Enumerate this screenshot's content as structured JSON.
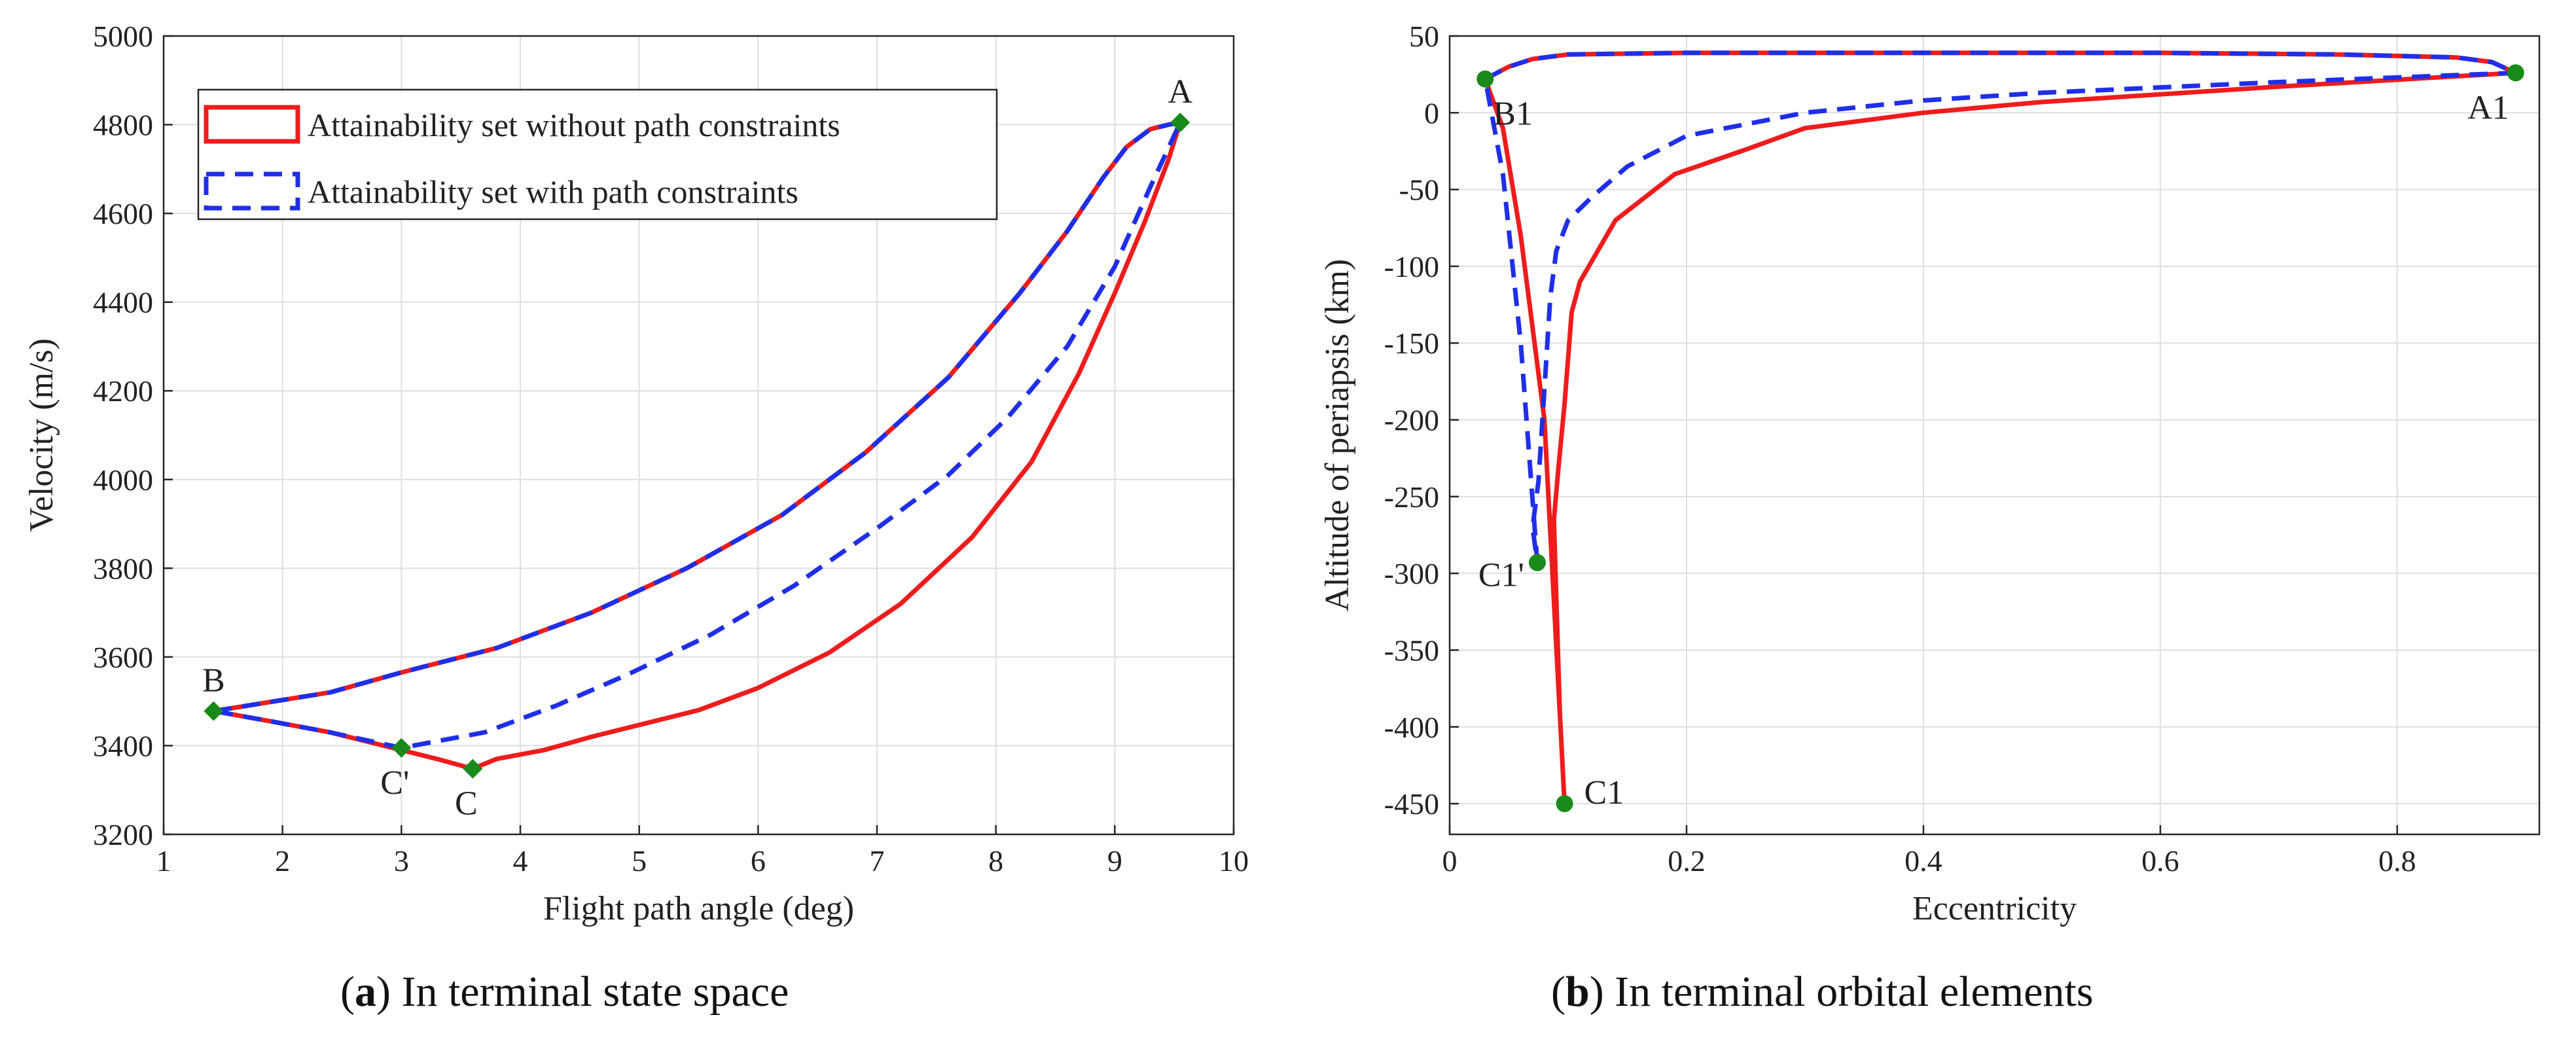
{
  "captions": {
    "a": {
      "letter": "a",
      "open": "(",
      "rest": ") In terminal state space"
    },
    "b": {
      "letter": "b",
      "open": "(",
      "rest": ") In terminal orbital elements"
    }
  },
  "colors": {
    "red": "#ee1c1c",
    "blue": "#1f2fe8",
    "marker": "#198a19",
    "grid": "#dedede"
  },
  "chart_data": [
    {
      "id": "a",
      "type": "line",
      "title": "",
      "xlabel": "Flight path angle (deg)",
      "ylabel": "Velocity (m/s)",
      "xlim": [
        1,
        10
      ],
      "ylim": [
        3200,
        5000
      ],
      "xticks": [
        1,
        2,
        3,
        4,
        5,
        6,
        7,
        8,
        9,
        10
      ],
      "yticks": [
        3200,
        3400,
        3600,
        3800,
        4000,
        4200,
        4400,
        4600,
        4800,
        5000
      ],
      "grid": true,
      "legend": {
        "position": "top-left",
        "entries": [
          "Attainability set without path constraints",
          "Attainability set with path constraints"
        ]
      },
      "series": [
        {
          "name": "Attainability set without path constraints",
          "color": "red",
          "style": "solid",
          "x": [
            1.42,
            2.4,
            3.0,
            3.8,
            4.6,
            5.4,
            6.2,
            6.9,
            7.6,
            8.2,
            8.6,
            8.9,
            9.1,
            9.3,
            9.45,
            9.55,
            9.45,
            9.25,
            9.0,
            8.7,
            8.3,
            7.8,
            7.2,
            6.6,
            6.0,
            5.5,
            4.6,
            4.2,
            3.8,
            3.6,
            3.3,
            3.0,
            2.4,
            1.9,
            1.42
          ],
          "y": [
            3478,
            3520,
            3565,
            3620,
            3700,
            3800,
            3920,
            4060,
            4230,
            4420,
            4560,
            4680,
            4750,
            4790,
            4800,
            4805,
            4720,
            4580,
            4420,
            4240,
            4040,
            3870,
            3720,
            3610,
            3530,
            3480,
            3420,
            3390,
            3370,
            3348,
            3370,
            3390,
            3430,
            3455,
            3478
          ]
        },
        {
          "name": "Attainability set with path constraints",
          "color": "blue",
          "style": "dashed",
          "x": [
            1.42,
            2.4,
            3.0,
            3.8,
            4.6,
            5.4,
            6.2,
            6.9,
            7.6,
            8.2,
            8.6,
            8.9,
            9.1,
            9.3,
            9.45,
            9.55,
            9.3,
            9.0,
            8.6,
            8.1,
            7.6,
            7.0,
            6.3,
            5.6,
            4.9,
            4.3,
            3.7,
            3.0,
            2.4,
            1.9,
            1.42
          ],
          "y": [
            3478,
            3520,
            3565,
            3620,
            3700,
            3800,
            3920,
            4060,
            4230,
            4420,
            4560,
            4680,
            4750,
            4790,
            4800,
            4805,
            4660,
            4480,
            4300,
            4140,
            4010,
            3890,
            3760,
            3650,
            3560,
            3490,
            3430,
            3395,
            3430,
            3455,
            3478
          ]
        }
      ],
      "points": [
        {
          "label": "A",
          "x": 9.55,
          "y": 4805,
          "anchor": "above"
        },
        {
          "label": "B",
          "x": 1.42,
          "y": 3478,
          "anchor": "above"
        },
        {
          "label": "C'",
          "x": 3.0,
          "y": 3395,
          "anchor": "below"
        },
        {
          "label": "C",
          "x": 3.6,
          "y": 3348,
          "anchor": "below"
        }
      ]
    },
    {
      "id": "b",
      "type": "line",
      "title": "",
      "xlabel": "Eccentricity",
      "ylabel": "Altitude of periapsis (km)",
      "xlim": [
        0,
        0.92
      ],
      "ylim": [
        -470,
        50
      ],
      "xticks": [
        0,
        0.2,
        0.4,
        0.6,
        0.8
      ],
      "xtick_labels": [
        "0",
        "0.2",
        "0.4",
        "0.6",
        "0.8"
      ],
      "yticks": [
        -450,
        -400,
        -350,
        -300,
        -250,
        -200,
        -150,
        -100,
        -50,
        0,
        50
      ],
      "grid": true,
      "series": [
        {
          "name": "Attainability set without path constraints",
          "color": "red",
          "style": "solid",
          "x": [
            0.03,
            0.05,
            0.07,
            0.1,
            0.2,
            0.4,
            0.6,
            0.75,
            0.85,
            0.88,
            0.9,
            0.7,
            0.5,
            0.4,
            0.3,
            0.25,
            0.19,
            0.14,
            0.11,
            0.103,
            0.097,
            0.092,
            0.088,
            0.093,
            0.097,
            0.08,
            0.06,
            0.045,
            0.03
          ],
          "y": [
            22,
            30,
            35,
            38,
            39,
            39,
            39,
            38,
            36,
            33,
            26,
            17,
            7,
            0,
            -10,
            -24,
            -40,
            -70,
            -110,
            -130,
            -190,
            -230,
            -265,
            -390,
            -450,
            -200,
            -80,
            -10,
            22
          ]
        },
        {
          "name": "Attainability set with path constraints",
          "color": "blue",
          "style": "dashed",
          "x": [
            0.03,
            0.05,
            0.07,
            0.1,
            0.2,
            0.4,
            0.6,
            0.75,
            0.85,
            0.88,
            0.9,
            0.7,
            0.5,
            0.4,
            0.3,
            0.2,
            0.15,
            0.12,
            0.1,
            0.09,
            0.085,
            0.08,
            0.075,
            0.07,
            0.074,
            0.06,
            0.045,
            0.03
          ],
          "y": [
            22,
            30,
            35,
            38,
            39,
            39,
            39,
            38,
            36,
            33,
            26,
            20,
            13,
            8,
            0,
            -15,
            -35,
            -55,
            -70,
            -90,
            -120,
            -180,
            -240,
            -270,
            -293,
            -150,
            -40,
            22
          ]
        }
      ],
      "points": [
        {
          "label": "A1",
          "x": 0.9,
          "y": 26,
          "anchor": "below-left"
        },
        {
          "label": "B1",
          "x": 0.03,
          "y": 22,
          "anchor": "below-right"
        },
        {
          "label": "C1'",
          "x": 0.074,
          "y": -293,
          "anchor": "left"
        },
        {
          "label": "C1",
          "x": 0.097,
          "y": -450,
          "anchor": "right"
        }
      ]
    }
  ]
}
